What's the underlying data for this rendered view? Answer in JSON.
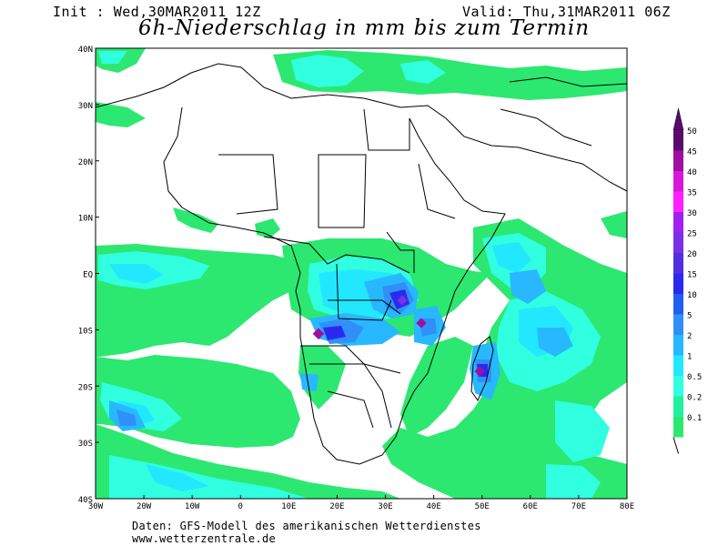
{
  "header": {
    "init": "Init : Wed,30MAR2011 12Z",
    "valid": "Valid: Thu,31MAR2011 06Z",
    "title": "6h-Niederschlag in mm bis zum Termin"
  },
  "map": {
    "lat_labels": [
      "40N",
      "30N",
      "20N",
      "10N",
      "EQ",
      "10S",
      "20S",
      "30S",
      "40S"
    ],
    "lon_labels": [
      "30W",
      "20W",
      "10W",
      "0",
      "10E",
      "20E",
      "30E",
      "40E",
      "50E",
      "60E",
      "70E",
      "80E"
    ],
    "extent": {
      "lon": [
        -30,
        80
      ],
      "lat": [
        -40,
        40
      ]
    }
  },
  "legend": {
    "labels": [
      "50",
      "45",
      "40",
      "35",
      "30",
      "25",
      "20",
      "15",
      "10",
      "5",
      "2",
      "1",
      "0.5",
      "0.2",
      "0.1"
    ],
    "colors": [
      "#5a0a6e",
      "#a010a0",
      "#d818d8",
      "#ff20ff",
      "#a020f0",
      "#7a30e8",
      "#5030e0",
      "#2a2aee",
      "#2060f0",
      "#3090f8",
      "#28b8ff",
      "#22e8ff",
      "#30ffe0",
      "#20f0a0",
      "#2ce870"
    ]
  },
  "footer": {
    "line1": "Daten: GFS-Modell des amerikanischen Wetterdienstes",
    "line2": "www.wetterzentrale.de"
  }
}
